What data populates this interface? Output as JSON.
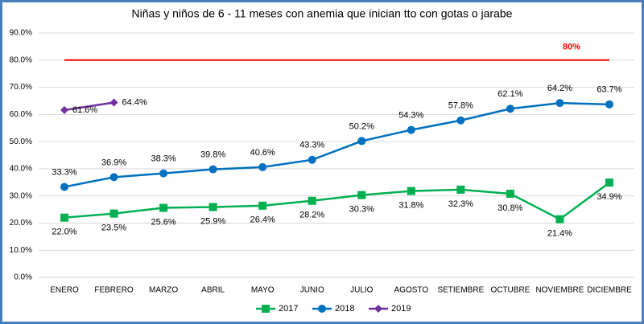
{
  "chart_data": {
    "type": "line",
    "title": "Niñas y niños de 6 - 11 meses con anemia que inician tto con gotas o jarabe",
    "categories": [
      "ENERO",
      "FEBRERO",
      "MARZO",
      "ABRIL",
      "MAYO",
      "JUNIO",
      "JULIO",
      "AGOSTO",
      "SETIEMBRE",
      "OCTUBRE",
      "NOVIEMBRE",
      "DICIEMBRE"
    ],
    "series": [
      {
        "name": "2017",
        "color": "#00b050",
        "marker": "square",
        "label_position": "below",
        "values": [
          22.0,
          23.5,
          25.6,
          25.9,
          26.4,
          28.2,
          30.3,
          31.8,
          32.3,
          30.8,
          21.4,
          34.9
        ],
        "value_labels": [
          "22.0%",
          "23.5%",
          "25.6%",
          "25.9%",
          "26.4%",
          "28.2%",
          "30.3%",
          "31.8%",
          "32.3%",
          "30.8%",
          "21.4%",
          "34.9%"
        ]
      },
      {
        "name": "2018",
        "color": "#0070c0",
        "marker": "circle",
        "label_position": "above",
        "values": [
          33.3,
          36.9,
          38.3,
          39.8,
          40.6,
          43.3,
          50.2,
          54.3,
          57.8,
          62.1,
          64.2,
          63.7
        ],
        "value_labels": [
          "33.3%",
          "36.9%",
          "38.3%",
          "39.8%",
          "40.6%",
          "43.3%",
          "50.2%",
          "54.3%",
          "57.8%",
          "62.1%",
          "64.2%",
          "63.7%"
        ]
      },
      {
        "name": "2019",
        "color": "#7030a0",
        "marker": "diamond",
        "label_position": "right",
        "values": [
          61.6,
          64.4,
          null,
          null,
          null,
          null,
          null,
          null,
          null,
          null,
          null,
          null
        ],
        "value_labels": [
          "61.6%",
          "64.4%",
          null,
          null,
          null,
          null,
          null,
          null,
          null,
          null,
          null,
          null
        ]
      }
    ],
    "reference_line": {
      "value": 80,
      "label": "80%",
      "color": "#ff0000"
    },
    "ylim": [
      0,
      90
    ],
    "yticks": [
      {
        "value": 0,
        "label": "0.0%"
      },
      {
        "value": 10,
        "label": "10.0%"
      },
      {
        "value": 20,
        "label": "20.0%"
      },
      {
        "value": 30,
        "label": "30.0%"
      },
      {
        "value": 40,
        "label": "40.0%"
      },
      {
        "value": 50,
        "label": "50.0%"
      },
      {
        "value": 60,
        "label": "60.0%"
      },
      {
        "value": 70,
        "label": "70.0%"
      },
      {
        "value": 80,
        "label": "80.0%"
      },
      {
        "value": 90,
        "label": "90.0%"
      }
    ],
    "grid": true,
    "legend": "bottom"
  }
}
